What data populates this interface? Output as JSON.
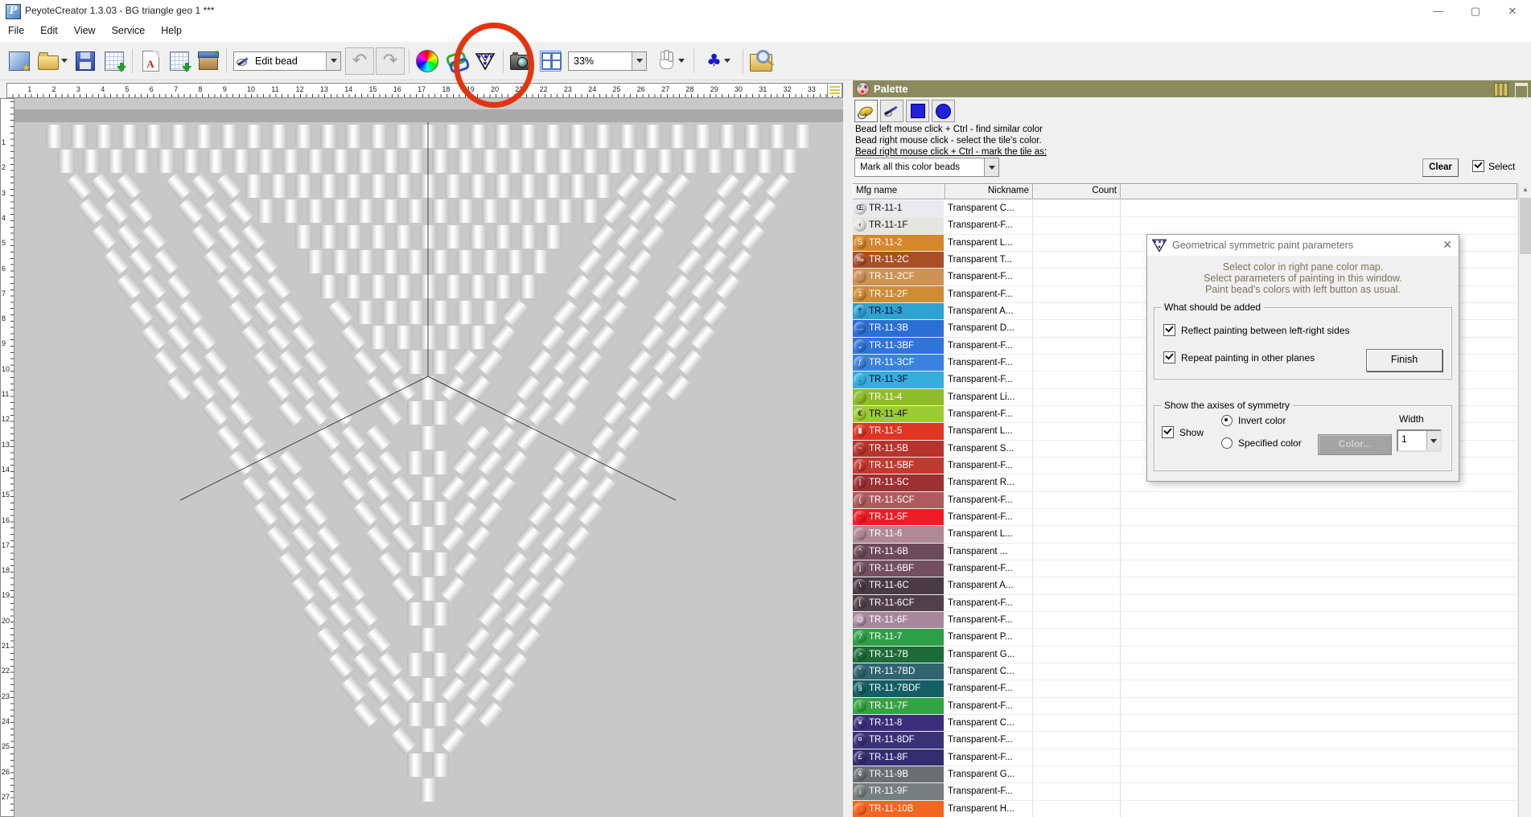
{
  "window": {
    "title": "PeyoteCreator 1.3.03 - BG triangle geo 1 ***",
    "logo_letter": "P",
    "minimize": "—",
    "maximize": "▢",
    "close": "✕"
  },
  "menu": {
    "items": [
      "File",
      "Edit",
      "View",
      "Service",
      "Help"
    ]
  },
  "toolbar": {
    "edit_mode_value": "Edit bead",
    "zoom_value": "33%",
    "pdf_letter": "A",
    "undo_glyph": "↶",
    "redo_glyph": "↷",
    "club_glyph": "♣"
  },
  "rulers": {
    "top_numbers": [
      1,
      2,
      3,
      4,
      5,
      6,
      7,
      8,
      9,
      10,
      11,
      12,
      13,
      14,
      15,
      16,
      17,
      18,
      19,
      20,
      21,
      22,
      23,
      24,
      25,
      26,
      27,
      28,
      29,
      30,
      31,
      32,
      33
    ],
    "left_numbers": [
      1,
      2,
      3,
      4,
      5,
      6,
      7,
      8,
      9,
      10,
      11,
      12,
      13,
      14,
      15,
      16,
      17,
      18,
      19,
      20,
      21,
      22,
      23,
      24,
      25,
      26,
      27
    ]
  },
  "palette": {
    "title": "Palette",
    "help_lines": [
      "Bead left  mouse click + Ctrl - find similar color",
      "Bead right mouse click - select the tile's color.",
      "Bead right mouse click + Ctrl - mark the tile as:"
    ],
    "mark_dropdown_value": "Mark all this color beads",
    "clear_label": "Clear",
    "select_label": "Select",
    "columns": [
      "Mfg name",
      "Nickname",
      "Count"
    ],
    "rows": [
      {
        "mfg": "TR-11-1",
        "nickname": "Transparent C...",
        "color": "#e9e9ef",
        "text": "#111",
        "symbol": "Œ",
        "symcolor": "#111"
      },
      {
        "mfg": "TR-11-1F",
        "nickname": "Transparent-F...",
        "color": "#e6e6e1",
        "text": "#111",
        "symbol": "‹",
        "symcolor": "#111"
      },
      {
        "mfg": "TR-11-2",
        "nickname": "Transparent L...",
        "color": "#d4882a",
        "text": "#fff",
        "symbol": "S",
        "symcolor": "#fff"
      },
      {
        "mfg": "TR-11-2C",
        "nickname": "Transparent T...",
        "color": "#a84f28",
        "text": "#fff",
        "symbol": "‰",
        "symcolor": "#fff"
      },
      {
        "mfg": "TR-11-2CF",
        "nickname": "Transparent-F...",
        "color": "#cd9255",
        "text": "#fff",
        "symbol": "ˆ",
        "symcolor": "#fff"
      },
      {
        "mfg": "TR-11-2F",
        "nickname": "Transparent-F...",
        "color": "#cf8c33",
        "text": "#fff",
        "symbol": "‡",
        "symcolor": "#fff"
      },
      {
        "mfg": "TR-11-3",
        "nickname": "Transparent A...",
        "color": "#2da3d2",
        "text": "#102",
        "symbol": "†",
        "symcolor": "#102"
      },
      {
        "mfg": "TR-11-3B",
        "nickname": "Transparent D...",
        "color": "#2b6fd4",
        "text": "#fff",
        "symbol": "…",
        "symcolor": "#fff"
      },
      {
        "mfg": "TR-11-3BF",
        "nickname": "Transparent-F...",
        "color": "#2f74d8",
        "text": "#fff",
        "symbol": "„",
        "symcolor": "#fff"
      },
      {
        "mfg": "TR-11-3CF",
        "nickname": "Transparent-F...",
        "color": "#3b82e0",
        "text": "#fff",
        "symbol": "ƒ",
        "symcolor": "#fff"
      },
      {
        "mfg": "TR-11-3F",
        "nickname": "Transparent-F...",
        "color": "#35aede",
        "text": "#102",
        "symbol": ",",
        "symcolor": "#102"
      },
      {
        "mfg": "TR-11-4",
        "nickname": "Transparent Li...",
        "color": "#8fbc2a",
        "text": "#fff",
        "symbol": "·",
        "symcolor": "#fff"
      },
      {
        "mfg": "TR-11-4F",
        "nickname": "Transparent-F...",
        "color": "#9ccc33",
        "text": "#103",
        "symbol": "€",
        "symcolor": "#103"
      },
      {
        "mfg": "TR-11-5",
        "nickname": "Transparent L...",
        "color": "#df3522",
        "text": "#fff",
        "symbol": "▮",
        "symcolor": "#fff"
      },
      {
        "mfg": "TR-11-5B",
        "nickname": "Transparent S...",
        "color": "#b5342c",
        "text": "#fff",
        "symbol": "~",
        "symcolor": "#fff"
      },
      {
        "mfg": "TR-11-5BF",
        "nickname": "Transparent-F...",
        "color": "#c13a30",
        "text": "#fff",
        "symbol": "}",
        "symcolor": "#fff"
      },
      {
        "mfg": "TR-11-5C",
        "nickname": "Transparent R...",
        "color": "#9e2f33",
        "text": "#fff",
        "symbol": "|",
        "symcolor": "#fff"
      },
      {
        "mfg": "TR-11-5CF",
        "nickname": "Transparent-F...",
        "color": "#b05a5e",
        "text": "#fff",
        "symbol": "{",
        "symcolor": "#fff"
      },
      {
        "mfg": "TR-11-5F",
        "nickname": "Transparent-F...",
        "color": "#ee1c25",
        "text": "#fff",
        "symbol": "`",
        "symcolor": "#fff"
      },
      {
        "mfg": "TR-11-6",
        "nickname": "Transparent L...",
        "color": "#b08896",
        "text": "#fff",
        "symbol": " ",
        "symcolor": "#fff"
      },
      {
        "mfg": "TR-11-6B",
        "nickname": "Transparent ...",
        "color": "#6d4a58",
        "text": "#fff",
        "symbol": "^",
        "symcolor": "#fff"
      },
      {
        "mfg": "TR-11-6BF",
        "nickname": "Transparent-F...",
        "color": "#74505e",
        "text": "#fff",
        "symbol": "]",
        "symcolor": "#fff"
      },
      {
        "mfg": "TR-11-6C",
        "nickname": "Transparent A...",
        "color": "#4a3a44",
        "text": "#fff",
        "symbol": "\\",
        "symcolor": "#fff"
      },
      {
        "mfg": "TR-11-6CF",
        "nickname": "Transparent-F...",
        "color": "#514048",
        "text": "#fff",
        "symbol": "[",
        "symcolor": "#fff"
      },
      {
        "mfg": "TR-11-6F",
        "nickname": "Transparent-F...",
        "color": "#a9879b",
        "text": "#fff",
        "symbol": "@",
        "symcolor": "#fff"
      },
      {
        "mfg": "TR-11-7",
        "nickname": "Transparent P...",
        "color": "#2e9e47",
        "text": "#fff",
        "symbol": "?",
        "symcolor": "#fff"
      },
      {
        "mfg": "TR-11-7B",
        "nickname": "Transparent G...",
        "color": "#1d6b38",
        "text": "#fff",
        "symbol": ">",
        "symcolor": "#fff"
      },
      {
        "mfg": "TR-11-7BD",
        "nickname": "Transparent C...",
        "color": "#2f6470",
        "text": "#fff",
        "symbol": "\"",
        "symcolor": "#fff"
      },
      {
        "mfg": "TR-11-7BDF",
        "nickname": "Transparent-F...",
        "color": "#135f63",
        "text": "#fff",
        "symbol": "§",
        "symcolor": "#fff"
      },
      {
        "mfg": "TR-11-7F",
        "nickname": "Transparent-F...",
        "color": "#33a344",
        "text": "#fff",
        "symbol": "!",
        "symcolor": "#fff"
      },
      {
        "mfg": "TR-11-8",
        "nickname": "Transparent C...",
        "color": "#3b2d77",
        "text": "#fff",
        "symbol": "¥",
        "symcolor": "#fff"
      },
      {
        "mfg": "TR-11-8DF",
        "nickname": "Transparent-F...",
        "color": "#3a3177",
        "text": "#fff",
        "symbol": "¤",
        "symcolor": "#fff"
      },
      {
        "mfg": "TR-11-8F",
        "nickname": "Transparent-F...",
        "color": "#352c72",
        "text": "#fff",
        "symbol": "£",
        "symcolor": "#fff"
      },
      {
        "mfg": "TR-11-9B",
        "nickname": "Transparent G...",
        "color": "#6a7072",
        "text": "#fff",
        "symbol": "¢",
        "symcolor": "#fff"
      },
      {
        "mfg": "TR-11-9F",
        "nickname": "Transparent-F...",
        "color": "#787e7e",
        "text": "#fff",
        "symbol": "¡",
        "symcolor": "#fff"
      },
      {
        "mfg": "TR-11-10B",
        "nickname": "Transparent H...",
        "color": "#f26522",
        "text": "#fff",
        "symbol": " ",
        "symcolor": "#fff"
      }
    ]
  },
  "dialog": {
    "title": "Geometrical symmetric paint parameters",
    "close": "✕",
    "instructions": [
      "Select color in right pane color map.",
      "Select parameters of painting in this window.",
      "Paint bead's colors with left button as usual."
    ],
    "group_add_title": "What should be added",
    "checkbox_reflect": "Reflect painting between left-right sides",
    "checkbox_repeat": "Repeat painting in other planes",
    "finish_label": "Finish",
    "group_axes_title": "Show the axises of symmetry",
    "show_label": "Show",
    "invert_label": "Invert color",
    "specified_label": "Specified color",
    "color_button_label": "Color...",
    "width_label": "Width",
    "width_value": "1"
  }
}
